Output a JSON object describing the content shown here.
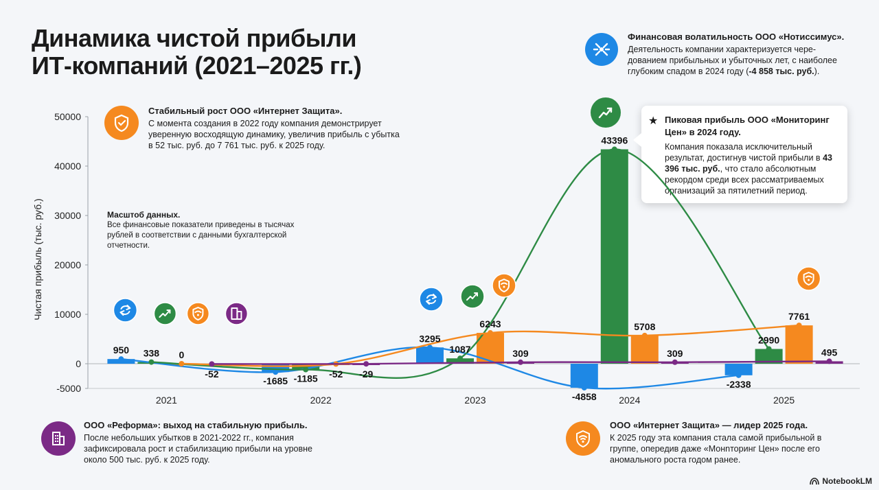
{
  "title": "Динамика чистой прибыли\nИТ-компаний (2021–2025 гг.)",
  "notes": {
    "volatility": {
      "head": "Финансовая волатильность ООО «Нотиссимус».",
      "body_pre": "Деятельность компании характеризуется чере-дованием прибыльных и убыточных лет, с наиболее глубоким спадом в 2024 году (",
      "body_bold": "-4 858 тыс. руб.",
      "body_post": ")."
    },
    "stable_growth": {
      "head": "Стабильный рост ООО «Интернет Защита».",
      "body": "С момента создания в 2022 году компания демонстрирует уверенную восходящую динамику, увеличив прибыль с убытка в 52 тыс. руб. до 7 761 тыс. руб. к 2025 году."
    },
    "scale": {
      "head": "Масштоб данных.",
      "body": "Все финансовые показатели приведены в тысячах рублей в соответствии с данными бухгалтерской отчетности."
    },
    "peak": {
      "head": "Пиковая прибыль ООО «Мониторинг Цен» в 2024 году.",
      "body_pre": "Компания показала исключительный результат, достигнув чистой прибыли в ",
      "body_bold": "43 396 тыс. руб.",
      "body_post": ", что стало абсолютным рекордом среди всех рассматриваемых организаций за пятилетний период."
    },
    "reforma": {
      "head": "ООО «Реформа»: выход на стабильную прибыль.",
      "body": "После небольших убытков в 2021-2022 гг., компания зафиксировала рост и стабилизацию прибыли на уровне около 500 тыс. руб. к 2025 году."
    },
    "leader": {
      "head": "ООО «Интернет Защита» — лидер 2025 года.",
      "body": "К 2025 году эта компания стала самой прибыльной в группе, опередив даже «Монnторинг Цен» после его аномального роста годом ранее."
    }
  },
  "brand": "NotebookLM",
  "colors": {
    "blue": "#1e88e5",
    "green": "#2e8b45",
    "orange": "#f5891f",
    "purple": "#7b2a86"
  },
  "icons": {
    "blue": "recycle-icon",
    "green": "trend-up-icon",
    "orange": "wifi-shield-icon",
    "purple": "building-icon"
  },
  "chart_data": {
    "type": "bar",
    "categories": [
      "2021",
      "2022",
      "2023",
      "2024",
      "2025"
    ],
    "ylabel": "Чистая прибыль (тыс. руб.)",
    "ylim": [
      -5000,
      50000
    ],
    "yticks": [
      "-5000",
      "0",
      "10000",
      "20000",
      "30000",
      "40000",
      "50000"
    ],
    "series": [
      {
        "color": "blue",
        "values": [
          950,
          -1685,
          3295,
          -4858,
          -2338
        ]
      },
      {
        "color": "green",
        "values": [
          338,
          -1185,
          1087,
          43396,
          2990
        ]
      },
      {
        "color": "orange",
        "values": [
          0,
          -52,
          6243,
          5708,
          7761
        ]
      },
      {
        "color": "purple",
        "values": [
          -52,
          -29,
          309,
          309,
          495
        ]
      }
    ],
    "grid": false
  }
}
